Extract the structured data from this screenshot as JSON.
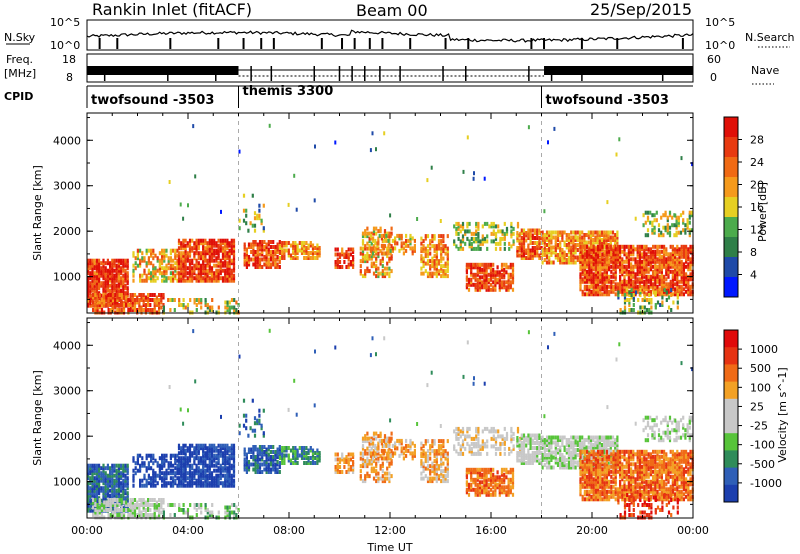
{
  "header": {
    "station": "Rankin Inlet (fitACF)",
    "beam": "Beam 00",
    "date": "25/Sep/2015"
  },
  "strip_labels": {
    "nsky": "N.Sky",
    "nsky_ticks": [
      "10^5",
      "10^0"
    ],
    "nsearch": "N.Search",
    "nsearch_ticks": [
      "10^5",
      "10^0"
    ],
    "freq": "Freq.",
    "freq_unit": "[MHz]",
    "freq_ticks": [
      "18",
      "8"
    ],
    "nave": "Nave",
    "nave_ticks": [
      "60",
      "0"
    ],
    "cpid": "CPID"
  },
  "cpid_segments": [
    {
      "label": "twofsound -3503",
      "start_hour": 0,
      "end_hour": 6
    },
    {
      "label": "themis 3300",
      "start_hour": 6,
      "end_hour": 18
    },
    {
      "label": "twofsound -3503",
      "start_hour": 18,
      "end_hour": 24
    }
  ],
  "colors": {
    "power_scale": [
      "#0018ff",
      "#1f4aa8",
      "#2f7f48",
      "#4cab4c",
      "#e6cf22",
      "#f59a1c",
      "#f06a14",
      "#e83a10",
      "#e01008"
    ],
    "velocity_scale": [
      "#1c3fae",
      "#2f5fb7",
      "#2f8c5a",
      "#57c43a",
      "#c8c8c8",
      "#c8c8c8",
      "#f3a125",
      "#f06b17",
      "#e63312",
      "#e00a0a"
    ]
  },
  "chart_data": [
    {
      "type": "heatmap",
      "title": "Power",
      "xlabel": "",
      "ylabel": "Slant Range [km]",
      "x_ticks": [
        "00:00",
        "04:00",
        "08:00",
        "12:00",
        "16:00",
        "20:00",
        "00:00"
      ],
      "x_range_hours": [
        0,
        24
      ],
      "ylim": [
        200,
        4600
      ],
      "y_ticks": [
        1000,
        2000,
        3000,
        4000
      ],
      "colorbar_label": "Power [dB]",
      "colorbar_ticks": [
        4,
        8,
        12,
        16,
        20,
        24,
        28
      ],
      "colorbar_range": [
        0,
        32
      ]
    },
    {
      "type": "heatmap",
      "title": "Velocity",
      "xlabel": "Time UT",
      "ylabel": "Slant Range [km]",
      "x_ticks": [
        "00:00",
        "04:00",
        "08:00",
        "12:00",
        "16:00",
        "20:00",
        "00:00"
      ],
      "x_range_hours": [
        0,
        24
      ],
      "ylim": [
        200,
        4600
      ],
      "y_ticks": [
        1000,
        2000,
        3000,
        4000
      ],
      "colorbar_label": "Velocity [m s^-1]",
      "colorbar_ticks": [
        "1000",
        "500",
        "100",
        "25",
        "-25",
        "-100",
        "-500",
        "-1000"
      ]
    }
  ]
}
